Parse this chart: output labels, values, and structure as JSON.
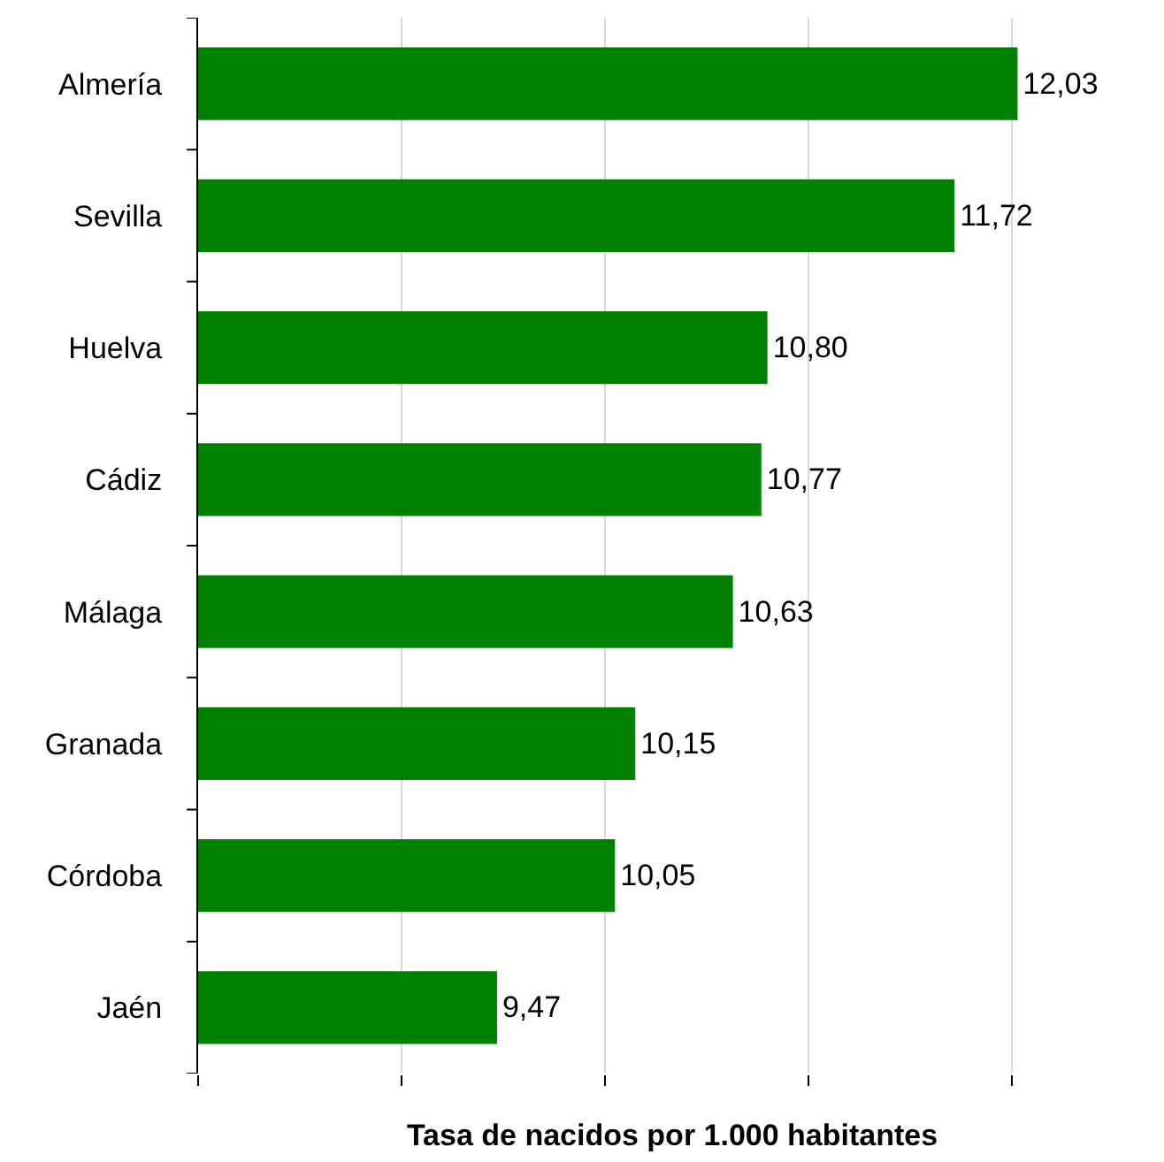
{
  "chart_data": {
    "type": "bar",
    "orientation": "horizontal",
    "xlabel": "Tasa de nacidos por 1.000 habitantes",
    "categories": [
      "Almería",
      "Sevilla",
      "Huelva",
      "Cádiz",
      "Málaga",
      "Granada",
      "Córdoba",
      "Jaén"
    ],
    "values": [
      12.03,
      11.72,
      10.8,
      10.77,
      10.63,
      10.15,
      10.05,
      9.47
    ],
    "value_labels": [
      "12,03",
      "11,72",
      "10,80",
      "10,77",
      "10,63",
      "10,15",
      "10,05",
      "9,47"
    ],
    "color": "#008000",
    "xticks": [
      {
        "value": 8,
        "label": null
      },
      {
        "value": 9,
        "label": null
      },
      {
        "value": 10,
        "label": null
      },
      {
        "value": 11,
        "label": null
      },
      {
        "value": 12,
        "label": null
      }
    ],
    "tick_labels": "y",
    "grid": "x"
  }
}
